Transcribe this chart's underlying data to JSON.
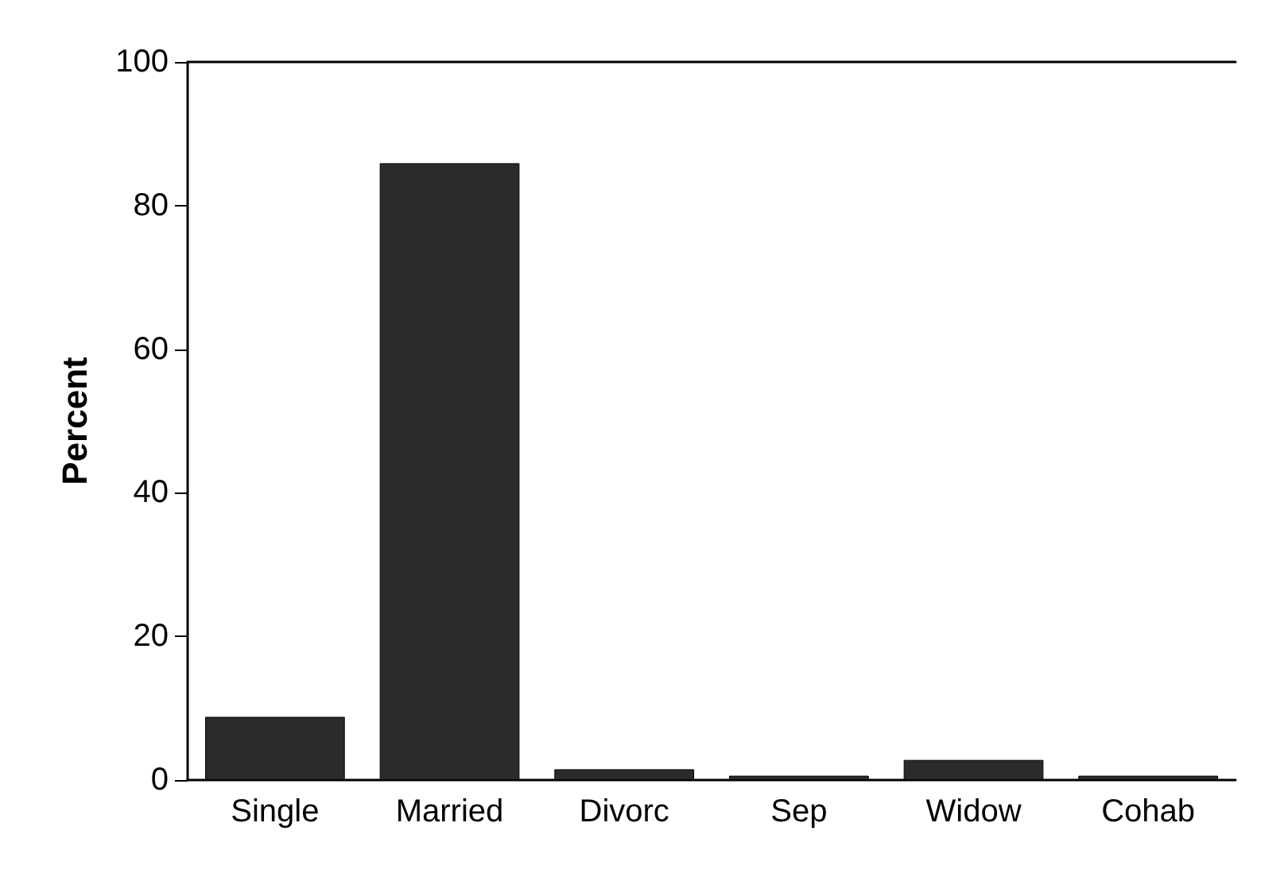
{
  "chart_data": {
    "type": "bar",
    "ylabel": "Percent",
    "categories": [
      "Single",
      "Married",
      "Divorc",
      "Sep",
      "Widow",
      "Cohab"
    ],
    "values": [
      8.8,
      85.9,
      1.5,
      0.6,
      2.8,
      0.6
    ],
    "color": "#2b2b2b",
    "ylim": [
      0,
      100
    ],
    "yticks": [
      0,
      20,
      40,
      60,
      80,
      100
    ],
    "grid": false
  }
}
